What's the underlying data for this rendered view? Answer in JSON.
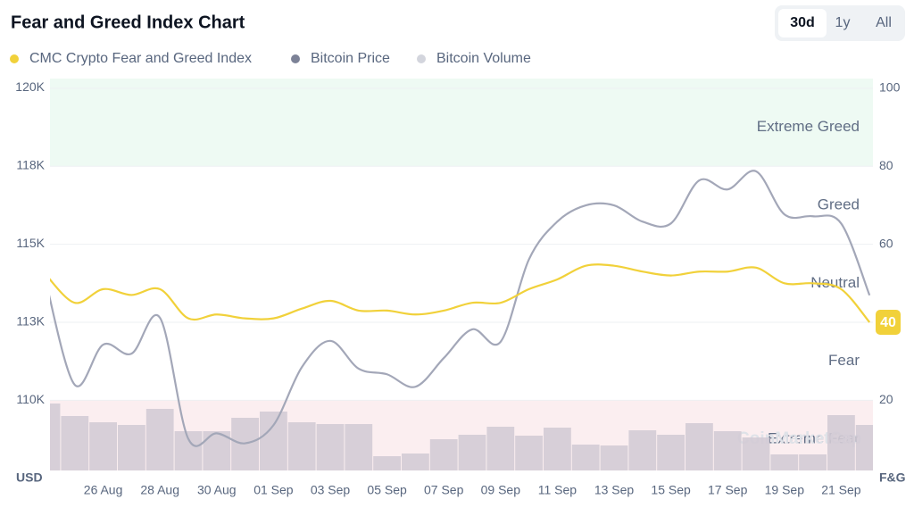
{
  "chart_data": {
    "type": "line",
    "title": "Fear and Greed Index Chart",
    "range_buttons": [
      "30d",
      "1y",
      "All"
    ],
    "selected": "30d",
    "y_axis_label": "USD",
    "y2_axis_label": "F&G",
    "watermark": "CoinMarketCap",
    "categories": [
      null,
      null,
      "26 Aug",
      null,
      "28 Aug",
      null,
      "30 Aug",
      null,
      "01 Sep",
      null,
      "03 Sep",
      null,
      "05 Sep",
      null,
      "07 Sep",
      null,
      "09 Sep",
      null,
      "11 Sep",
      null,
      "13 Sep",
      null,
      "15 Sep",
      null,
      "17 Sep",
      null,
      "19 Sep",
      null,
      "21 Sep",
      null
    ],
    "series": [
      {
        "name": "CMC Crypto Fear and Greed Index",
        "color": "#f1d13a",
        "axis": "y2",
        "values": [
          52,
          45,
          48.5,
          47,
          48.5,
          41,
          42,
          41,
          41,
          43.5,
          45.5,
          43,
          43,
          42,
          43,
          45,
          45,
          48.5,
          51,
          54.5,
          54.5,
          53,
          52,
          53,
          53,
          54,
          50,
          50,
          48.5,
          40
        ]
      },
      {
        "name": "Bitcoin Price",
        "color": "#a3a7b8",
        "legend_color": "#7c8297",
        "axis": "y",
        "values": [
          113710,
          110490,
          111780,
          111490,
          112640,
          108760,
          108940,
          108620,
          109200,
          111060,
          111900,
          111010,
          110830,
          110430,
          111350,
          112270,
          111870,
          114510,
          115720,
          116240,
          116240,
          115720,
          115660,
          117040,
          116750,
          117330,
          115950,
          115890,
          115660,
          113360
        ]
      },
      {
        "name": "Bitcoin Volume",
        "color": "#d3cbd5",
        "legend_color": "#d3d5dd",
        "axis": "volume",
        "values": [
          75,
          61,
          54,
          51,
          69,
          44,
          44,
          59,
          66,
          54,
          52,
          52,
          16,
          19,
          35,
          40,
          49,
          39,
          48,
          29,
          28,
          45,
          40,
          53,
          44,
          37,
          18,
          18,
          62,
          51
        ]
      }
    ],
    "ylim": [
      107750,
      120300
    ],
    "yticks": [
      {
        "value": 120000,
        "label": "120K"
      },
      {
        "value": 117500,
        "label": "118K"
      },
      {
        "value": 115000,
        "label": "115K"
      },
      {
        "value": 112500,
        "label": "113K"
      },
      {
        "value": 110000,
        "label": "110K"
      }
    ],
    "y2lim": [
      2,
      102.5
    ],
    "y2ticks": [
      100,
      80,
      60,
      40,
      20
    ],
    "volume_lim": [
      0,
      80
    ],
    "zones": [
      {
        "label": "Extreme Greed",
        "from": 80,
        "to": 100,
        "color": "#eefaf3"
      },
      {
        "label": "Greed",
        "from": 60,
        "to": 80
      },
      {
        "label": "Neutral",
        "from": 40,
        "to": 60
      },
      {
        "label": "Fear",
        "from": 20,
        "to": 40
      },
      {
        "label": "Extreme Fear",
        "from": 0,
        "to": 20,
        "color": "#fbeef0"
      }
    ]
  }
}
